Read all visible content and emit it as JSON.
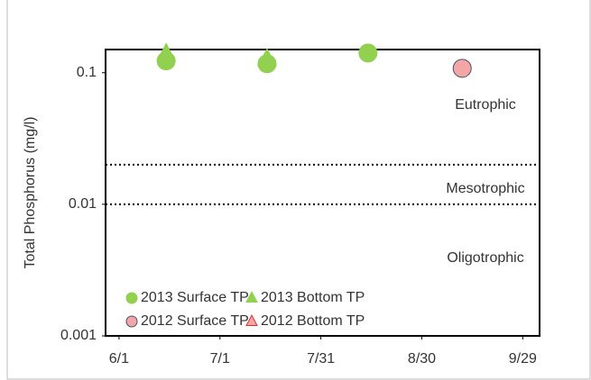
{
  "chart_data": {
    "type": "scatter",
    "y_label": "Total Phosphorus (mg/l)",
    "log_y": true,
    "ylim": [
      0.001,
      0.15
    ],
    "yticks": [
      0.1,
      0.01,
      0.001
    ],
    "xlim": [
      "5/28",
      "10/4"
    ],
    "xticks": [
      "6/1",
      "7/1",
      "7/31",
      "8/30",
      "9/29"
    ],
    "reference_lines": [
      {
        "value": 0.02
      },
      {
        "value": 0.01
      }
    ],
    "annotations": [
      "Eutrophic",
      "Mesotrophic",
      "Oligotrophic"
    ],
    "series": [
      {
        "name": "2013 Surface TP",
        "marker": "circle",
        "color": "#92d050",
        "x": [
          "6/15",
          "7/15",
          "8/14"
        ],
        "values": [
          0.123,
          0.117,
          0.141
        ]
      },
      {
        "name": "2013 Bottom TP",
        "marker": "triangle",
        "color": "#92d050",
        "x": [
          "6/15",
          "7/15"
        ],
        "values": [
          0.139,
          0.127
        ]
      },
      {
        "name": "2012 Surface TP",
        "marker": "circle",
        "color": "#f4a6a6",
        "x": [
          "9/11"
        ],
        "values": [
          0.108
        ]
      },
      {
        "name": "2012 Bottom TP",
        "marker": "triangle",
        "color": "#f4a6a6",
        "x": [],
        "values": []
      }
    ]
  }
}
